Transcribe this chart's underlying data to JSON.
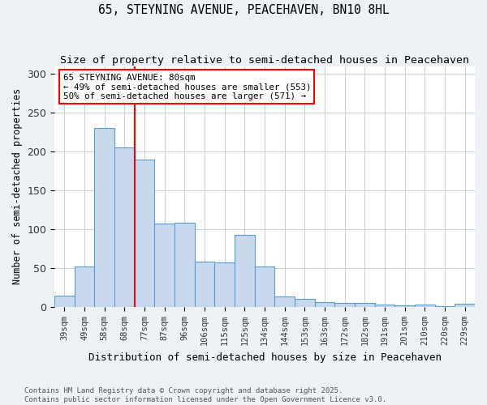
{
  "title": "65, STEYNING AVENUE, PEACEHAVEN, BN10 8HL",
  "subtitle": "Size of property relative to semi-detached houses in Peacehaven",
  "xlabel": "Distribution of semi-detached houses by size in Peacehaven",
  "ylabel": "Number of semi-detached properties",
  "bins": [
    "39sqm",
    "49sqm",
    "58sqm",
    "68sqm",
    "77sqm",
    "87sqm",
    "96sqm",
    "106sqm",
    "115sqm",
    "125sqm",
    "134sqm",
    "144sqm",
    "153sqm",
    "163sqm",
    "172sqm",
    "182sqm",
    "191sqm",
    "201sqm",
    "210sqm",
    "220sqm",
    "229sqm"
  ],
  "values": [
    15,
    52,
    230,
    205,
    190,
    107,
    108,
    58,
    57,
    93,
    52,
    14,
    10,
    6,
    5,
    5,
    3,
    2,
    3,
    1,
    4
  ],
  "bar_color": "#c8d9ee",
  "bar_edge_color": "#5b9bd5",
  "vline_after_index": 3,
  "vline_color": "red",
  "annotation_text": "65 STEYNING AVENUE: 80sqm\n← 49% of semi-detached houses are smaller (553)\n50% of semi-detached houses are larger (571) →",
  "annotation_box_color": "white",
  "annotation_box_edge_color": "red",
  "footnote": "Contains HM Land Registry data © Crown copyright and database right 2025.\nContains public sector information licensed under the Open Government Licence v3.0.",
  "ylim": [
    0,
    310
  ],
  "yticks": [
    0,
    50,
    100,
    150,
    200,
    250,
    300
  ],
  "background_color": "#eef2f7",
  "plot_bg_color": "white",
  "title_fontsize": 10.5,
  "subtitle_fontsize": 9.5,
  "grid_color": "#c8d0dc"
}
